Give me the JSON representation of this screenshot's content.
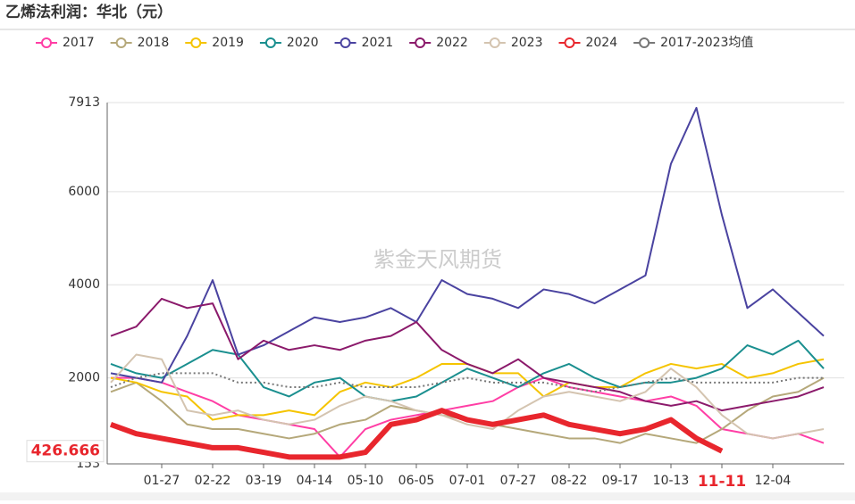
{
  "chart_data": {
    "type": "line",
    "title": "乙烯法利润：华北（元）",
    "watermark": "紫金天风期货",
    "categories": [
      null,
      null,
      "01-27",
      null,
      "02-22",
      null,
      "03-19",
      null,
      "04-14",
      null,
      "05-10",
      null,
      "06-05",
      null,
      "07-01",
      null,
      "07-27",
      null,
      "08-22",
      null,
      "09-17",
      null,
      "10-13",
      null,
      "11-11",
      null,
      "12-04",
      null,
      null
    ],
    "highlight_index": 24,
    "ylim": [
      153,
      7913
    ],
    "yticks": [
      153,
      2000,
      4000,
      6000,
      7913
    ],
    "grid": true,
    "cursor_value": 426.666,
    "series": [
      {
        "name": "2017",
        "color": "#ff3ea5",
        "values": [
          2000,
          2000,
          1900,
          1700,
          1500,
          1200,
          1100,
          1000,
          900,
          300,
          900,
          1100,
          1200,
          1300,
          1400,
          1500,
          1800,
          2000,
          1800,
          1700,
          1600,
          1500,
          1600,
          1400,
          900,
          800,
          700,
          800,
          600
        ]
      },
      {
        "name": "2018",
        "color": "#b5a87a",
        "values": [
          1700,
          1900,
          1500,
          1000,
          900,
          900,
          800,
          700,
          800,
          1000,
          1100,
          1400,
          1300,
          1200,
          1100,
          1000,
          900,
          800,
          700,
          700,
          600,
          800,
          700,
          600,
          900,
          1300,
          1600,
          1700,
          2000
        ]
      },
      {
        "name": "2019",
        "color": "#f5c400",
        "values": [
          2000,
          1900,
          1700,
          1600,
          1100,
          1200,
          1200,
          1300,
          1200,
          1700,
          1900,
          1800,
          2000,
          2300,
          2300,
          2100,
          2100,
          1600,
          1900,
          1800,
          1800,
          2100,
          2300,
          2200,
          2300,
          2000,
          2100,
          2300,
          2400
        ]
      },
      {
        "name": "2020",
        "color": "#1a8f8f",
        "values": [
          2300,
          2100,
          2000,
          2300,
          2600,
          2500,
          1800,
          1600,
          1900,
          2000,
          1600,
          1500,
          1600,
          1900,
          2200,
          2000,
          1800,
          2100,
          2300,
          2000,
          1800,
          1900,
          1900,
          2000,
          2200,
          2700,
          2500,
          2800,
          2200
        ]
      },
      {
        "name": "2021",
        "color": "#4a43a0",
        "values": [
          2100,
          2000,
          1900,
          2900,
          4100,
          2500,
          2700,
          3000,
          3300,
          3200,
          3300,
          3500,
          3200,
          4100,
          3800,
          3700,
          3500,
          3900,
          3800,
          3600,
          3900,
          4200,
          6600,
          7800,
          5500,
          3500,
          3900,
          3400,
          2900
        ]
      },
      {
        "name": "2022",
        "color": "#8b1a6b",
        "values": [
          2900,
          3100,
          3700,
          3500,
          3600,
          2400,
          2800,
          2600,
          2700,
          2600,
          2800,
          2900,
          3200,
          2600,
          2300,
          2100,
          2400,
          2000,
          1900,
          1800,
          1700,
          1500,
          1400,
          1500,
          1300,
          1400,
          1500,
          1600,
          1800
        ]
      },
      {
        "name": "2023",
        "color": "#d4c4b0",
        "values": [
          1900,
          2500,
          2400,
          1300,
          1200,
          1300,
          1100,
          1000,
          1100,
          1400,
          1600,
          1500,
          1300,
          1200,
          1000,
          900,
          1300,
          1600,
          1700,
          1600,
          1500,
          1700,
          2200,
          1800,
          1200,
          800,
          700,
          800,
          900
        ]
      },
      {
        "name": "2024",
        "color": "#e8262d",
        "values": [
          1000,
          800,
          700,
          600,
          500,
          500,
          400,
          300,
          300,
          300,
          400,
          1000,
          1100,
          1300,
          1100,
          1000,
          1100,
          1200,
          1000,
          900,
          800,
          900,
          1100,
          700,
          426.666,
          null,
          null,
          null,
          null
        ]
      },
      {
        "name": "2017-2023均值",
        "color": "#777777",
        "dashed": true,
        "values": [
          1800,
          2000,
          2100,
          2100,
          2100,
          1900,
          1900,
          1800,
          1800,
          1900,
          1800,
          1800,
          1800,
          1900,
          2000,
          1900,
          1900,
          1900,
          1800,
          1700,
          1800,
          1900,
          2000,
          1900,
          1900,
          1900,
          1900,
          2000,
          2000
        ]
      }
    ]
  }
}
